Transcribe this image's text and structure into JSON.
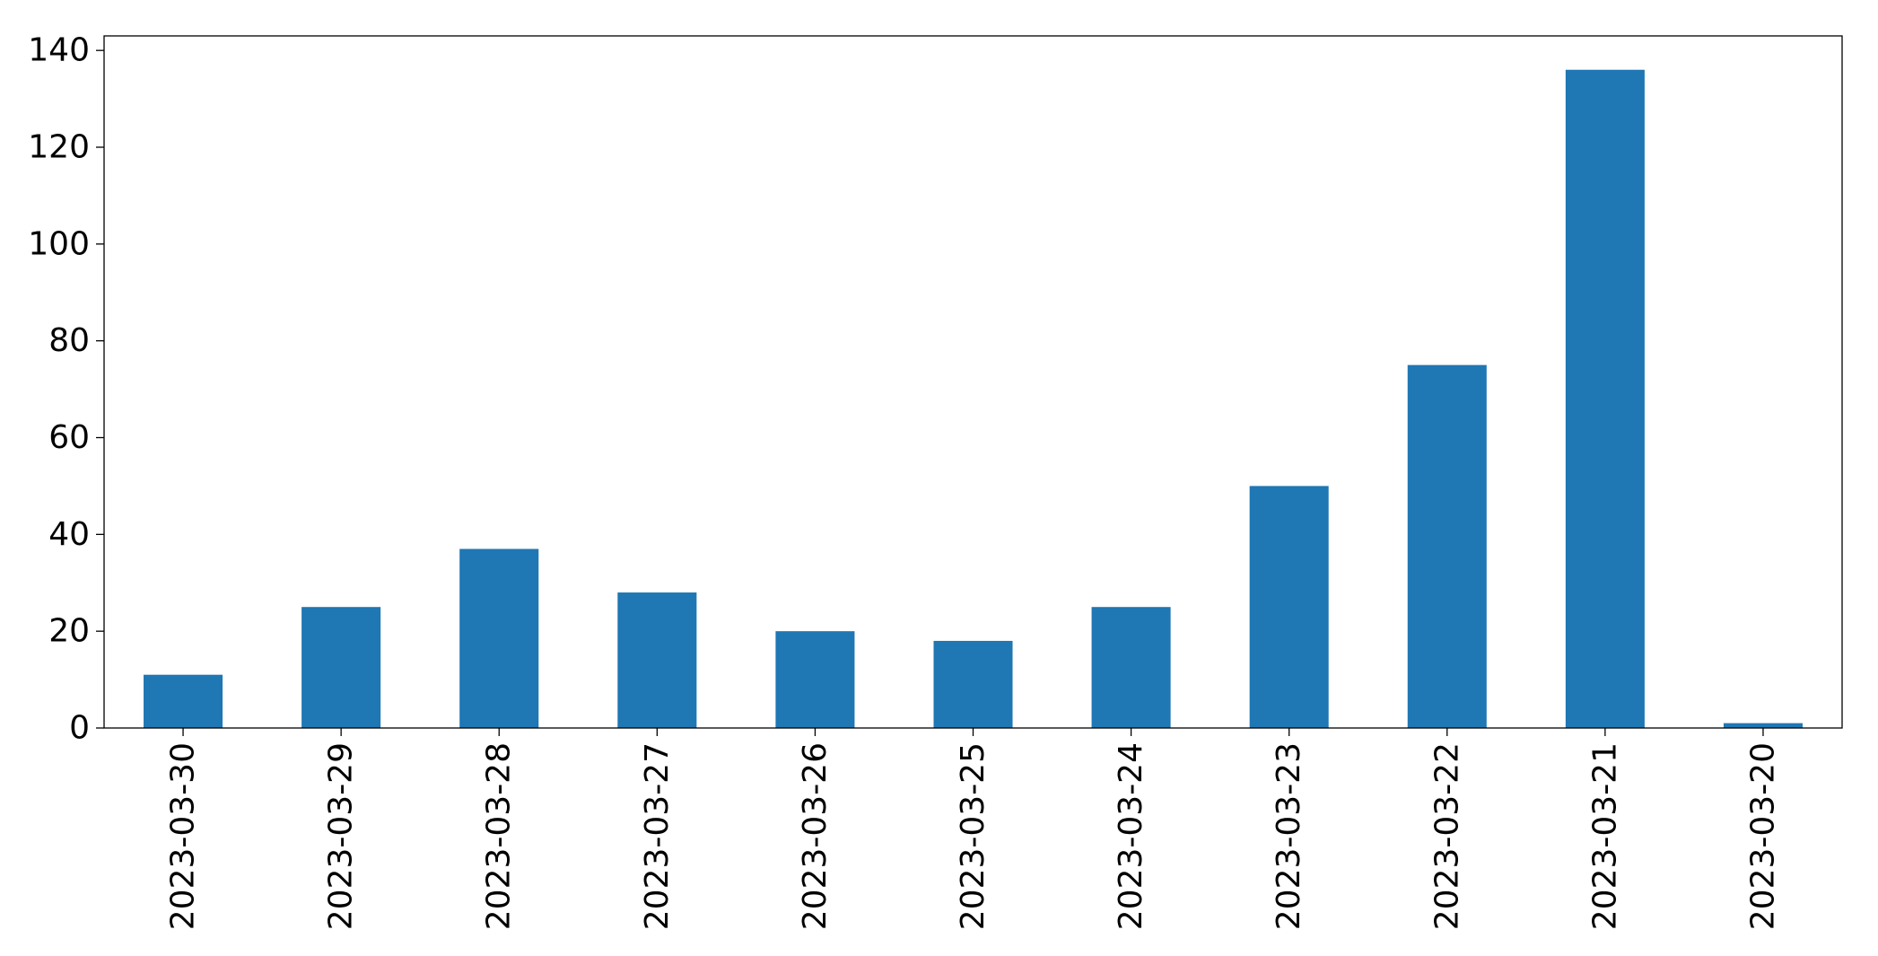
{
  "chart_data": {
    "type": "bar",
    "title": "",
    "xlabel": "",
    "ylabel": "",
    "categories": [
      "2023-03-30",
      "2023-03-29",
      "2023-03-28",
      "2023-03-27",
      "2023-03-26",
      "2023-03-25",
      "2023-03-24",
      "2023-03-23",
      "2023-03-22",
      "2023-03-21",
      "2023-03-20"
    ],
    "values": [
      11,
      25,
      37,
      28,
      20,
      18,
      25,
      50,
      75,
      136,
      1
    ],
    "ylim": [
      0,
      143
    ],
    "yticks": [
      0,
      20,
      40,
      60,
      80,
      100,
      120,
      140
    ],
    "grid": false,
    "legend": "none",
    "colors": {
      "bar": "#1f77b4",
      "axis": "#000000",
      "background": "#ffffff"
    }
  }
}
